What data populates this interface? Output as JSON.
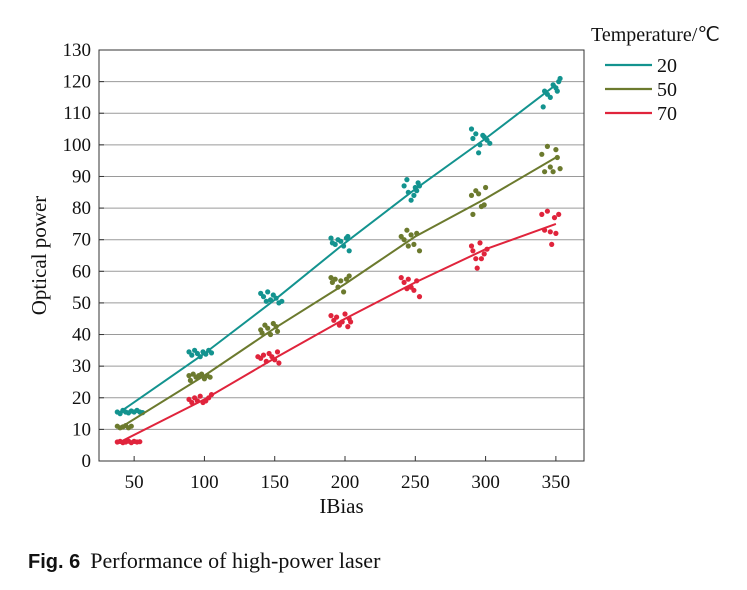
{
  "caption": {
    "label": "Fig. 6",
    "text": "Performance of high-power laser"
  },
  "chart_data": {
    "type": "scatter",
    "title": "",
    "xlabel": "IBias",
    "ylabel": "Optical power",
    "xlim": [
      25,
      370
    ],
    "ylim": [
      0,
      130
    ],
    "xticks": [
      50,
      100,
      150,
      200,
      250,
      300,
      350
    ],
    "yticks": [
      0,
      10,
      20,
      30,
      40,
      50,
      60,
      70,
      80,
      90,
      100,
      110,
      120,
      130
    ],
    "grid": "horizontal",
    "legend": {
      "title": "Temperature/℃",
      "placement": "top-right outside"
    },
    "series": [
      {
        "name": "20",
        "color": "#13938f",
        "fit_line": [
          [
            40,
            15.5
          ],
          [
            100,
            34
          ],
          [
            150,
            51
          ],
          [
            200,
            69
          ],
          [
            250,
            86
          ],
          [
            300,
            102
          ],
          [
            350,
            119
          ]
        ],
        "points": [
          [
            38,
            15.5
          ],
          [
            40,
            15.0
          ],
          [
            42,
            16.0
          ],
          [
            44,
            15.5
          ],
          [
            46,
            15.2
          ],
          [
            48,
            15.8
          ],
          [
            50,
            15.5
          ],
          [
            52,
            16.0
          ],
          [
            54,
            15.5
          ],
          [
            56,
            15.3
          ],
          [
            89,
            34.5
          ],
          [
            91,
            33.5
          ],
          [
            93,
            35.0
          ],
          [
            95,
            34.0
          ],
          [
            97,
            33.0
          ],
          [
            99,
            34.5
          ],
          [
            101,
            33.8
          ],
          [
            103,
            35.0
          ],
          [
            105,
            34.2
          ],
          [
            140,
            53.0
          ],
          [
            142,
            52.0
          ],
          [
            144,
            50.5
          ],
          [
            145,
            53.5
          ],
          [
            147,
            51.0
          ],
          [
            149,
            52.5
          ],
          [
            151,
            51.5
          ],
          [
            153,
            50.0
          ],
          [
            155,
            50.5
          ],
          [
            190,
            70.5
          ],
          [
            191,
            69.0
          ],
          [
            193,
            68.5
          ],
          [
            195,
            70.0
          ],
          [
            197,
            69.5
          ],
          [
            199,
            68.0
          ],
          [
            201,
            70.5
          ],
          [
            202,
            71.0
          ],
          [
            203,
            66.5
          ],
          [
            242,
            87.0
          ],
          [
            244,
            89.0
          ],
          [
            245,
            85.0
          ],
          [
            247,
            82.5
          ],
          [
            249,
            84.0
          ],
          [
            250,
            86.5
          ],
          [
            251,
            85.5
          ],
          [
            252,
            88.0
          ],
          [
            253,
            87.0
          ],
          [
            290,
            105.0
          ],
          [
            291,
            102.0
          ],
          [
            293,
            103.5
          ],
          [
            295,
            97.5
          ],
          [
            296,
            100.0
          ],
          [
            298,
            103.0
          ],
          [
            299,
            102.5
          ],
          [
            301,
            101.5
          ],
          [
            303,
            100.5
          ],
          [
            341,
            112.0
          ],
          [
            342,
            117.0
          ],
          [
            344,
            116.0
          ],
          [
            346,
            115.0
          ],
          [
            348,
            119.0
          ],
          [
            350,
            118.0
          ],
          [
            351,
            117.0
          ],
          [
            352,
            120.0
          ],
          [
            353,
            121.0
          ]
        ]
      },
      {
        "name": "50",
        "color": "#6c7a2e",
        "fit_line": [
          [
            40,
            10.5
          ],
          [
            100,
            27
          ],
          [
            150,
            42
          ],
          [
            200,
            56
          ],
          [
            250,
            71
          ],
          [
            300,
            83
          ],
          [
            350,
            96
          ]
        ],
        "points": [
          [
            38,
            11.0
          ],
          [
            40,
            10.5
          ],
          [
            42,
            10.8
          ],
          [
            44,
            11.2
          ],
          [
            46,
            10.5
          ],
          [
            48,
            11.0
          ],
          [
            89,
            27.0
          ],
          [
            90,
            25.5
          ],
          [
            92,
            27.5
          ],
          [
            94,
            26.5
          ],
          [
            96,
            27.0
          ],
          [
            98,
            27.5
          ],
          [
            100,
            26.0
          ],
          [
            102,
            27.0
          ],
          [
            104,
            26.5
          ],
          [
            140,
            41.5
          ],
          [
            141,
            40.5
          ],
          [
            143,
            43.0
          ],
          [
            145,
            42.0
          ],
          [
            147,
            40.0
          ],
          [
            149,
            43.5
          ],
          [
            151,
            42.5
          ],
          [
            152,
            41.0
          ],
          [
            190,
            58.0
          ],
          [
            191,
            56.5
          ],
          [
            193,
            57.5
          ],
          [
            195,
            55.0
          ],
          [
            197,
            57.0
          ],
          [
            199,
            53.5
          ],
          [
            201,
            57.5
          ],
          [
            203,
            58.5
          ],
          [
            240,
            71.0
          ],
          [
            242,
            70.0
          ],
          [
            244,
            73.0
          ],
          [
            245,
            68.0
          ],
          [
            247,
            71.5
          ],
          [
            249,
            68.5
          ],
          [
            251,
            72.0
          ],
          [
            253,
            66.5
          ],
          [
            290,
            84.0
          ],
          [
            291,
            78.0
          ],
          [
            293,
            85.5
          ],
          [
            295,
            84.5
          ],
          [
            297,
            80.5
          ],
          [
            299,
            81.0
          ],
          [
            300,
            86.5
          ],
          [
            340,
            97.0
          ],
          [
            342,
            91.5
          ],
          [
            344,
            99.5
          ],
          [
            346,
            93.0
          ],
          [
            348,
            91.5
          ],
          [
            350,
            98.5
          ],
          [
            351,
            96.0
          ],
          [
            353,
            92.5
          ]
        ]
      },
      {
        "name": "70",
        "color": "#e0243c",
        "fit_line": [
          [
            40,
            6
          ],
          [
            100,
            19.5
          ],
          [
            150,
            32.5
          ],
          [
            200,
            45
          ],
          [
            250,
            56.5
          ],
          [
            300,
            67
          ],
          [
            350,
            75
          ]
        ],
        "points": [
          [
            38,
            6.0
          ],
          [
            40,
            6.2
          ],
          [
            42,
            5.8
          ],
          [
            44,
            6.0
          ],
          [
            46,
            6.3
          ],
          [
            48,
            5.8
          ],
          [
            50,
            6.2
          ],
          [
            52,
            6.0
          ],
          [
            54,
            6.1
          ],
          [
            89,
            19.5
          ],
          [
            91,
            18.5
          ],
          [
            93,
            20.0
          ],
          [
            95,
            19.0
          ],
          [
            97,
            20.5
          ],
          [
            99,
            18.5
          ],
          [
            101,
            19.0
          ],
          [
            103,
            20.0
          ],
          [
            105,
            21.0
          ],
          [
            138,
            33.0
          ],
          [
            140,
            32.5
          ],
          [
            142,
            33.5
          ],
          [
            144,
            31.5
          ],
          [
            146,
            34.0
          ],
          [
            148,
            33.0
          ],
          [
            150,
            32.0
          ],
          [
            152,
            34.5
          ],
          [
            153,
            31.0
          ],
          [
            190,
            46.0
          ],
          [
            192,
            44.5
          ],
          [
            194,
            45.5
          ],
          [
            196,
            43.0
          ],
          [
            198,
            44.0
          ],
          [
            200,
            46.5
          ],
          [
            202,
            42.5
          ],
          [
            203,
            45.0
          ],
          [
            204,
            44.0
          ],
          [
            240,
            58.0
          ],
          [
            242,
            56.5
          ],
          [
            244,
            54.5
          ],
          [
            245,
            57.5
          ],
          [
            247,
            55.0
          ],
          [
            249,
            54.0
          ],
          [
            251,
            57.0
          ],
          [
            253,
            52.0
          ],
          [
            290,
            68.0
          ],
          [
            291,
            66.5
          ],
          [
            293,
            64.0
          ],
          [
            294,
            61.0
          ],
          [
            296,
            69.0
          ],
          [
            297,
            64.0
          ],
          [
            299,
            65.5
          ],
          [
            301,
            67.0
          ],
          [
            340,
            78.0
          ],
          [
            342,
            73.0
          ],
          [
            344,
            79.0
          ],
          [
            346,
            72.5
          ],
          [
            347,
            68.5
          ],
          [
            349,
            77.0
          ],
          [
            350,
            72.0
          ],
          [
            352,
            78.0
          ]
        ]
      }
    ]
  }
}
